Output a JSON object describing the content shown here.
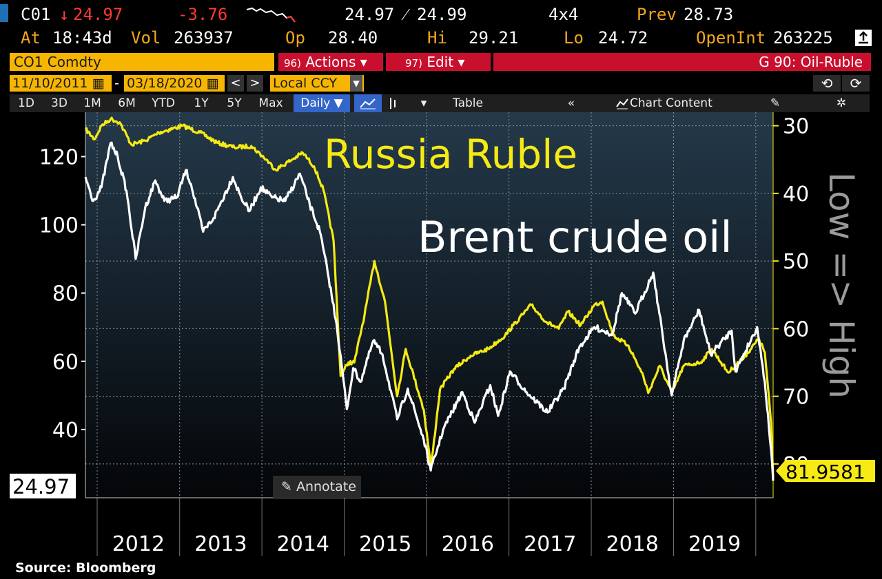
{
  "quote": {
    "ticker": "C01",
    "last": "24.97",
    "change": "-3.76",
    "bid_ask": "24.97 ⁄ 24.99",
    "size": "4x4",
    "prev_label": "Prev",
    "prev": "28.73",
    "at_label": "At",
    "time": "18:43d",
    "vol_label": "Vol",
    "vol": "263937",
    "op_label": "Op",
    "op": "28.40",
    "hi_label": "Hi",
    "hi": "29.21",
    "lo_label": "Lo",
    "lo": "24.72",
    "oi_label": "OpenInt",
    "oi": "263225"
  },
  "toolbar": {
    "security": "CO1 Comdty",
    "actions_num": "96)",
    "actions": "Actions ▾",
    "edit_num": "97)",
    "edit": "Edit ▾",
    "function": "G 90: Oil-Ruble",
    "start_date": "11/10/2011",
    "end_date": "03/18/2020",
    "dash": "-",
    "currency": "Local CCY",
    "prev_arrow": "<",
    "next_arrow": ">",
    "undo": "⟲",
    "redo": "⟳"
  },
  "periods": [
    "1D",
    "3D",
    "1M",
    "6M",
    "YTD",
    "1Y",
    "5Y",
    "Max"
  ],
  "frequency": "Daily ▼",
  "table_label": "Table",
  "collapse_label": "«",
  "chart_content_label": "Chart Content",
  "annotate_label": "Annotate",
  "source": "Source:  Bloomberg",
  "colors": {
    "oil": "#ffffff",
    "ruble": "#f5ea14",
    "accent": "#f6b500",
    "red": "#c8102e",
    "select": "#3465c8"
  },
  "chart_data": {
    "type": "line",
    "title": "",
    "annotations": [
      "Russia Ruble",
      "Brent crude oil"
    ],
    "x_ticks": [
      "2012",
      "2013",
      "2014",
      "2015",
      "2016",
      "2017",
      "2018",
      "2019"
    ],
    "x_range": [
      "2011-11-10",
      "2020-03-18"
    ],
    "y_left": {
      "ticks": [
        40,
        60,
        80,
        100,
        120
      ],
      "range": [
        20,
        133
      ],
      "last_value_label": "24.97"
    },
    "y_right": {
      "ticks": [
        30,
        40,
        50,
        60,
        70,
        80
      ],
      "range": [
        28,
        85
      ],
      "inverted": true,
      "label": "Low => High",
      "last_value_label": "81.9581"
    },
    "grid": true,
    "series": [
      {
        "name": "Brent crude oil",
        "axis": "left",
        "points": [
          [
            "2011-11-10",
            114
          ],
          [
            "2011-12-15",
            107
          ],
          [
            "2012-01-20",
            111
          ],
          [
            "2012-03-01",
            124
          ],
          [
            "2012-04-01",
            120
          ],
          [
            "2012-05-10",
            110
          ],
          [
            "2012-06-20",
            90
          ],
          [
            "2012-08-01",
            105
          ],
          [
            "2012-09-15",
            113
          ],
          [
            "2012-10-25",
            107
          ],
          [
            "2012-12-20",
            108
          ],
          [
            "2013-01-28",
            116
          ],
          [
            "2013-02-20",
            112
          ],
          [
            "2013-04-15",
            98
          ],
          [
            "2013-06-01",
            102
          ],
          [
            "2013-08-25",
            114
          ],
          [
            "2013-10-01",
            108
          ],
          [
            "2013-11-07",
            104
          ],
          [
            "2013-12-27",
            111
          ],
          [
            "2014-02-15",
            108
          ],
          [
            "2014-04-15",
            107
          ],
          [
            "2014-06-18",
            115
          ],
          [
            "2014-08-01",
            106
          ],
          [
            "2014-09-15",
            98
          ],
          [
            "2014-10-20",
            86
          ],
          [
            "2014-11-28",
            71
          ],
          [
            "2015-01-13",
            46
          ],
          [
            "2015-02-10",
            58
          ],
          [
            "2015-03-15",
            54
          ],
          [
            "2015-05-10",
            66
          ],
          [
            "2015-06-20",
            62
          ],
          [
            "2015-08-24",
            43
          ],
          [
            "2015-10-10",
            52
          ],
          [
            "2015-12-20",
            37
          ],
          [
            "2016-01-20",
            28
          ],
          [
            "2016-03-15",
            40
          ],
          [
            "2016-06-08",
            51
          ],
          [
            "2016-08-02",
            42
          ],
          [
            "2016-10-10",
            53
          ],
          [
            "2016-11-14",
            44
          ],
          [
            "2017-01-06",
            57
          ],
          [
            "2017-03-20",
            51
          ],
          [
            "2017-06-21",
            45
          ],
          [
            "2017-09-01",
            52
          ],
          [
            "2017-11-08",
            64
          ],
          [
            "2018-01-15",
            70
          ],
          [
            "2018-04-05",
            68
          ],
          [
            "2018-05-17",
            80
          ],
          [
            "2018-07-15",
            74
          ],
          [
            "2018-10-03",
            86
          ],
          [
            "2018-12-24",
            50
          ],
          [
            "2019-02-15",
            66
          ],
          [
            "2019-04-25",
            75
          ],
          [
            "2019-06-15",
            62
          ],
          [
            "2019-09-16",
            69
          ],
          [
            "2019-10-03",
            57
          ],
          [
            "2020-01-07",
            70
          ],
          [
            "2020-02-10",
            54
          ],
          [
            "2020-03-09",
            34
          ],
          [
            "2020-03-18",
            24.97
          ]
        ]
      },
      {
        "name": "Russia Ruble",
        "axis": "right",
        "points": [
          [
            "2011-11-10",
            30.5
          ],
          [
            "2011-12-20",
            32
          ],
          [
            "2012-01-20",
            30
          ],
          [
            "2012-03-01",
            29
          ],
          [
            "2012-04-10",
            29.5
          ],
          [
            "2012-06-01",
            32.8
          ],
          [
            "2012-08-01",
            32.2
          ],
          [
            "2012-10-01",
            31
          ],
          [
            "2013-01-15",
            30
          ],
          [
            "2013-04-01",
            31
          ],
          [
            "2013-06-15",
            32.5
          ],
          [
            "2013-09-01",
            33.2
          ],
          [
            "2013-11-15",
            33
          ],
          [
            "2014-01-20",
            35
          ],
          [
            "2014-03-03",
            36.5
          ],
          [
            "2014-05-15",
            35
          ],
          [
            "2014-07-01",
            34
          ],
          [
            "2014-08-20",
            36
          ],
          [
            "2014-10-01",
            39.5
          ],
          [
            "2014-11-15",
            47
          ],
          [
            "2014-12-16",
            67
          ],
          [
            "2015-01-20",
            65
          ],
          [
            "2015-02-15",
            65
          ],
          [
            "2015-04-01",
            58
          ],
          [
            "2015-05-15",
            50
          ],
          [
            "2015-07-01",
            56
          ],
          [
            "2015-08-24",
            70
          ],
          [
            "2015-10-01",
            63
          ],
          [
            "2015-12-20",
            72
          ],
          [
            "2016-01-21",
            80.5
          ],
          [
            "2016-03-01",
            69
          ],
          [
            "2016-05-01",
            66
          ],
          [
            "2016-07-15",
            64
          ],
          [
            "2016-10-01",
            63
          ],
          [
            "2016-12-15",
            61
          ],
          [
            "2017-01-20",
            59.5
          ],
          [
            "2017-04-10",
            56.5
          ],
          [
            "2017-06-15",
            59
          ],
          [
            "2017-08-10",
            60
          ],
          [
            "2017-09-20",
            57.5
          ],
          [
            "2017-11-15",
            59.5
          ],
          [
            "2018-01-15",
            56.5
          ],
          [
            "2018-02-20",
            56
          ],
          [
            "2018-04-09",
            61
          ],
          [
            "2018-06-15",
            62.5
          ],
          [
            "2018-08-20",
            67
          ],
          [
            "2018-09-11",
            69.5
          ],
          [
            "2018-11-01",
            65.5
          ],
          [
            "2018-12-25",
            69.5
          ],
          [
            "2019-02-15",
            65.5
          ],
          [
            "2019-05-01",
            65
          ],
          [
            "2019-06-20",
            63
          ],
          [
            "2019-09-01",
            66.5
          ],
          [
            "2019-11-15",
            64
          ],
          [
            "2020-01-15",
            61.5
          ],
          [
            "2020-02-10",
            63.5
          ],
          [
            "2020-03-09",
            74
          ],
          [
            "2020-03-18",
            81.96
          ]
        ]
      }
    ]
  }
}
